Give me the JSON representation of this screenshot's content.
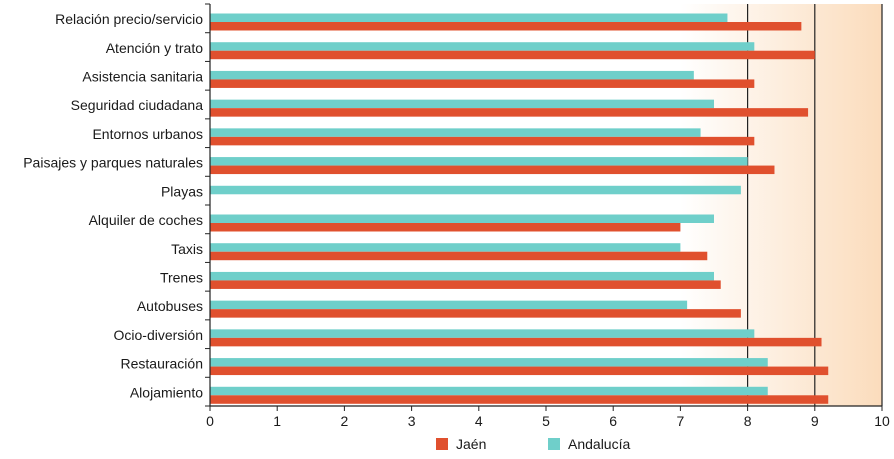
{
  "chart_data": {
    "type": "bar",
    "orientation": "horizontal",
    "categories": [
      "Relación precio/servicio",
      "Atención y trato",
      "Asistencia sanitaria",
      "Seguridad ciudadana",
      "Entornos urbanos",
      "Paisajes y parques naturales",
      "Playas",
      "Alquiler de coches",
      "Taxis",
      "Trenes",
      "Autobuses",
      "Ocio-diversión",
      "Restauración",
      "Alojamiento"
    ],
    "series": [
      {
        "name": "Andalucía",
        "color": "#6fcfca",
        "values": [
          7.7,
          8.1,
          7.2,
          7.5,
          7.3,
          8.0,
          7.9,
          7.5,
          7.0,
          7.5,
          7.1,
          8.1,
          8.3,
          8.3
        ]
      },
      {
        "name": "Jaén",
        "color": "#e0502e",
        "values": [
          8.8,
          9.0,
          8.1,
          8.9,
          8.1,
          8.4,
          null,
          7.0,
          7.4,
          7.6,
          7.9,
          9.1,
          9.2,
          9.2
        ]
      }
    ],
    "legend_order": [
      "Jaén",
      "Andalucía"
    ],
    "xlim": [
      0,
      10
    ],
    "xticks": [
      0,
      1,
      2,
      3,
      4,
      5,
      6,
      7,
      8,
      9,
      10
    ],
    "grid": "vertical lines at 8 and 9",
    "background_gradient": [
      "#ffffff",
      "#fbdcbc"
    ],
    "legend_position": "bottom-center"
  }
}
